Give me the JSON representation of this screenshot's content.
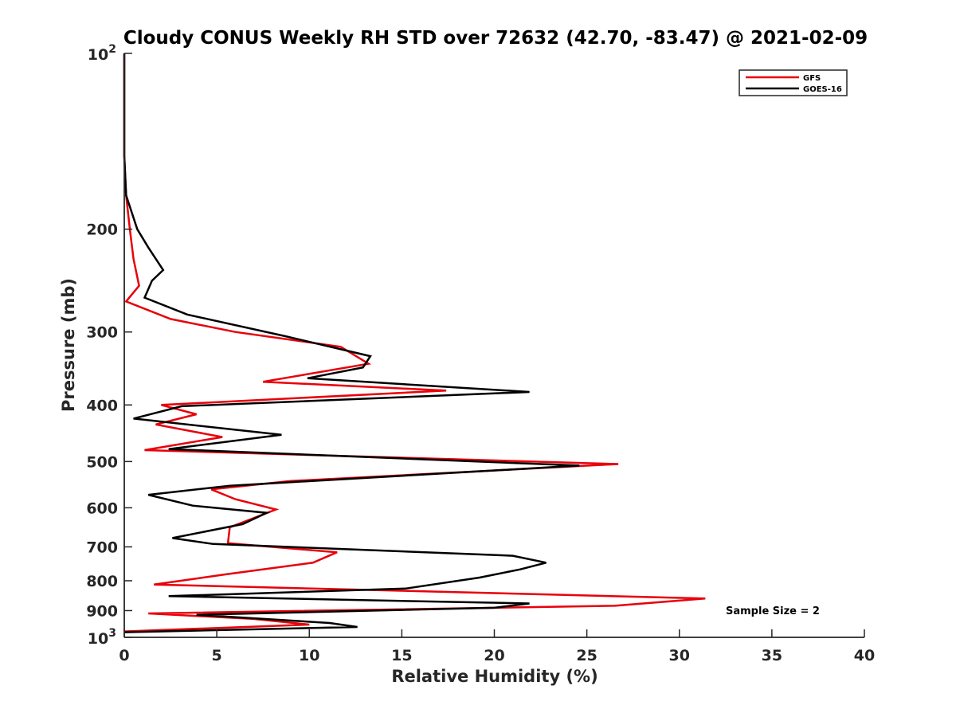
{
  "chart_data": {
    "type": "line",
    "title": "Cloudy CONUS Weekly RH STD over 72632 (42.70, -83.47) @ 2021-02-09",
    "xlabel": "Relative Humidity (%)",
    "ylabel": "Pressure (mb)",
    "xlim": [
      0,
      40
    ],
    "ylim": [
      100,
      1000
    ],
    "y_scale": "log",
    "y_reversed": true,
    "x_ticks": [
      "0",
      "5",
      "10",
      "15",
      "20",
      "25",
      "30",
      "35",
      "40"
    ],
    "y_ticks": [
      {
        "value": 100,
        "label": "10",
        "sup": "2"
      },
      {
        "value": 200,
        "label": "200",
        "sup": ""
      },
      {
        "value": 300,
        "label": "300",
        "sup": ""
      },
      {
        "value": 400,
        "label": "400",
        "sup": ""
      },
      {
        "value": 500,
        "label": "500",
        "sup": ""
      },
      {
        "value": 600,
        "label": "600",
        "sup": ""
      },
      {
        "value": 700,
        "label": "700",
        "sup": ""
      },
      {
        "value": 800,
        "label": "800",
        "sup": ""
      },
      {
        "value": 900,
        "label": "900",
        "sup": ""
      },
      {
        "value": 1000,
        "label": "10",
        "sup": "3"
      }
    ],
    "grid": false,
    "legend_position": "top-right",
    "annotation": "Sample Size = 2",
    "series": [
      {
        "name": "GFS",
        "color": "#e8000b",
        "points": [
          [
            0.0,
            100
          ],
          [
            0.0,
            150
          ],
          [
            0.1,
            175
          ],
          [
            0.3,
            200
          ],
          [
            0.5,
            225
          ],
          [
            0.8,
            250
          ],
          [
            0.1,
            266
          ],
          [
            2.5,
            285
          ],
          [
            6.0,
            300
          ],
          [
            11.7,
            318
          ],
          [
            13.2,
            340
          ],
          [
            7.5,
            365
          ],
          [
            17.4,
            378
          ],
          [
            2.0,
            400
          ],
          [
            3.9,
            415
          ],
          [
            1.7,
            432
          ],
          [
            5.3,
            454
          ],
          [
            1.1,
            478
          ],
          [
            26.7,
            505
          ],
          [
            9.0,
            540
          ],
          [
            4.7,
            558
          ],
          [
            6.0,
            580
          ],
          [
            8.2,
            604
          ],
          [
            5.7,
            648
          ],
          [
            5.6,
            690
          ],
          [
            11.5,
            715
          ],
          [
            10.2,
            745
          ],
          [
            5.5,
            780
          ],
          [
            1.6,
            812
          ],
          [
            31.4,
            858
          ],
          [
            26.5,
            883
          ],
          [
            1.3,
            910
          ],
          [
            7.0,
            930
          ],
          [
            10.0,
            951
          ],
          [
            0.0,
            977
          ]
        ]
      },
      {
        "name": "GOES-16",
        "color": "#000000",
        "points": [
          [
            0.0,
            100
          ],
          [
            0.0,
            150
          ],
          [
            0.1,
            175
          ],
          [
            0.7,
            200
          ],
          [
            1.3,
            215
          ],
          [
            2.1,
            235
          ],
          [
            1.5,
            245
          ],
          [
            1.1,
            262
          ],
          [
            3.4,
            280
          ],
          [
            8.7,
            305
          ],
          [
            13.3,
            330
          ],
          [
            12.9,
            345
          ],
          [
            9.9,
            360
          ],
          [
            21.9,
            380
          ],
          [
            3.1,
            402
          ],
          [
            0.5,
            422
          ],
          [
            8.5,
            450
          ],
          [
            2.4,
            476
          ],
          [
            24.6,
            508
          ],
          [
            5.7,
            550
          ],
          [
            1.3,
            570
          ],
          [
            3.7,
            595
          ],
          [
            7.7,
            612
          ],
          [
            6.4,
            640
          ],
          [
            2.6,
            676
          ],
          [
            4.8,
            692
          ],
          [
            21.0,
            725
          ],
          [
            22.8,
            745
          ],
          [
            21.4,
            765
          ],
          [
            19.2,
            790
          ],
          [
            15.2,
            825
          ],
          [
            2.4,
            850
          ],
          [
            21.9,
            875
          ],
          [
            20.0,
            890
          ],
          [
            3.9,
            915
          ],
          [
            11.1,
            945
          ],
          [
            12.6,
            960
          ],
          [
            0.0,
            980
          ]
        ]
      }
    ]
  }
}
